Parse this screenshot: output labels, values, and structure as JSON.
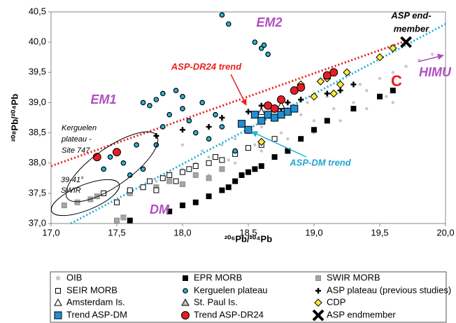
{
  "chart_data": {
    "type": "scatter",
    "x_label": "²⁰⁶Pb/²⁰⁴Pb",
    "y_label": "²⁰⁸Pb/²⁰⁴Pb",
    "xlim": [
      17.0,
      20.0
    ],
    "xticks": [
      {
        "value": 17.0,
        "label": "17,0"
      },
      {
        "value": 17.5,
        "label": "17,5"
      },
      {
        "value": 18.0,
        "label": "18,0"
      },
      {
        "value": 18.5,
        "label": "18,5"
      },
      {
        "value": 19.0,
        "label": "19,0"
      },
      {
        "value": 19.5,
        "label": "19,5"
      },
      {
        "value": 20.0,
        "label": "20,0"
      }
    ],
    "ylim": [
      37.0,
      40.5
    ],
    "yticks": [
      {
        "value": 37.0,
        "label": "37,0"
      },
      {
        "value": 37.5,
        "label": "37,5"
      },
      {
        "value": 38.0,
        "label": "38,0"
      },
      {
        "value": 38.5,
        "label": "38,5"
      },
      {
        "value": 39.0,
        "label": "39,0"
      },
      {
        "value": 39.5,
        "label": "39,5"
      },
      {
        "value": 40.0,
        "label": "40,0"
      },
      {
        "value": 40.5,
        "label": "40,5"
      }
    ],
    "grid": false,
    "series": [
      {
        "name": "OIB",
        "marker": "dot",
        "color": "#c8c8c8",
        "edge": "none",
        "x": [
          17.8,
          17.9,
          18.0,
          18.1,
          18.15,
          18.2,
          18.3,
          18.35,
          18.4,
          18.5,
          18.55,
          18.6,
          18.7,
          18.75,
          18.8,
          18.9,
          18.95,
          19.0,
          19.1,
          19.15,
          19.2,
          19.3,
          19.35,
          19.4,
          19.5,
          19.55,
          19.6,
          19.7,
          19.8,
          19.9,
          18.2,
          18.4,
          18.6,
          18.8,
          19.0,
          19.2,
          19.4,
          19.6,
          18.0,
          18.3
        ],
        "y": [
          37.7,
          37.8,
          37.9,
          38.0,
          38.2,
          38.1,
          38.3,
          38.05,
          38.4,
          38.5,
          38.3,
          38.6,
          38.7,
          38.5,
          38.9,
          38.8,
          39.0,
          38.7,
          39.1,
          38.9,
          39.2,
          39.0,
          39.3,
          39.2,
          39.4,
          39.1,
          39.5,
          39.6,
          39.7,
          39.8,
          37.8,
          38.0,
          38.2,
          38.4,
          38.5,
          38.7,
          38.9,
          39.0,
          38.3,
          38.7
        ]
      },
      {
        "name": "EPR MORB",
        "marker": "square",
        "color": "#000000",
        "edge": "#000000",
        "x": [
          17.6,
          17.9,
          18.0,
          18.1,
          18.2,
          18.3,
          18.35,
          18.4,
          18.45,
          18.5,
          18.55,
          18.6,
          18.7,
          18.8,
          18.9,
          19.0,
          19.1,
          19.3,
          19.5,
          19.6
        ],
        "y": [
          37.05,
          37.2,
          37.3,
          37.35,
          37.45,
          37.55,
          37.6,
          37.7,
          37.8,
          37.85,
          37.9,
          37.95,
          38.1,
          38.2,
          38.4,
          38.55,
          38.7,
          38.9,
          39.1,
          39.2
        ]
      },
      {
        "name": "SWIR MORB",
        "marker": "square",
        "color": "#a6a6a6",
        "edge": "#8c8c8c",
        "x": [
          17.1,
          17.2,
          17.3,
          17.35,
          17.5,
          17.55,
          17.6,
          17.8,
          17.9,
          18.0,
          18.1,
          18.2,
          18.3
        ],
        "y": [
          37.3,
          37.35,
          37.4,
          37.45,
          37.05,
          37.1,
          37.5,
          37.6,
          37.7,
          37.65,
          37.8,
          37.75,
          37.9
        ]
      },
      {
        "name": "SEIR MORB",
        "marker": "square",
        "color": "#ffffff",
        "edge": "#000000",
        "x": [
          17.4,
          17.5,
          17.6,
          17.7,
          17.75,
          17.8,
          17.85,
          17.9,
          17.95,
          18.0,
          18.05,
          18.1,
          18.2,
          18.25,
          18.3,
          18.4,
          18.5,
          18.6,
          18.7
        ],
        "y": [
          37.5,
          37.35,
          37.55,
          37.6,
          37.7,
          37.55,
          37.75,
          37.8,
          37.7,
          37.85,
          37.9,
          37.95,
          38.0,
          38.1,
          38.05,
          38.15,
          38.25,
          38.3,
          38.4
        ]
      },
      {
        "name": "Kerguelen plateau",
        "marker": "circle",
        "color": "#29b6d6",
        "edge": "#000000",
        "x": [
          17.4,
          17.45,
          17.5,
          17.55,
          17.6,
          17.65,
          17.7,
          17.75,
          17.8,
          17.85,
          17.9,
          17.95,
          18.0,
          18.05,
          18.1,
          18.15,
          18.2,
          18.3,
          18.35,
          18.4,
          18.6,
          18.62,
          18.65,
          18.55,
          17.7,
          17.85,
          17.8,
          18.0,
          18.3,
          18.25
        ],
        "y": [
          37.9,
          38.1,
          38.2,
          38.0,
          37.8,
          38.3,
          37.9,
          38.95,
          39.05,
          38.6,
          38.8,
          39.2,
          38.9,
          38.7,
          38.5,
          39.0,
          38.4,
          40.45,
          40.3,
          38.2,
          39.9,
          39.95,
          39.8,
          40.0,
          39.0,
          39.15,
          38.3,
          39.1,
          38.6,
          38.8
        ]
      },
      {
        "name": "ASP plateau (previous studies)",
        "marker": "plus",
        "color": "#000000",
        "edge": "#000000",
        "x": [
          17.8,
          18.0,
          18.2,
          18.3,
          18.5,
          18.6,
          18.65,
          18.75,
          18.8,
          18.9,
          19.0,
          19.1,
          19.2,
          19.3
        ],
        "y": [
          38.45,
          38.55,
          38.6,
          38.75,
          38.85,
          38.95,
          38.8,
          38.9,
          39.0,
          39.05,
          39.1,
          39.15,
          39.2,
          39.3
        ]
      },
      {
        "name": "Amsterdam Is.",
        "marker": "triangle",
        "color": "#ffffff",
        "edge": "#000000",
        "x": [
          18.6,
          18.75
        ],
        "y": [
          38.85,
          38.95
        ]
      },
      {
        "name": "St. Paul Is.",
        "marker": "triangle",
        "color": "#bfbfbf",
        "edge": "#000000",
        "x": [
          18.7,
          18.8
        ],
        "y": [
          38.75,
          38.85
        ]
      },
      {
        "name": "CDP",
        "marker": "diamond",
        "color": "#ffeb3b",
        "edge": "#000000",
        "x": [
          18.6,
          18.9,
          19.0,
          19.05,
          19.1,
          19.15,
          19.2,
          19.25,
          19.5,
          19.6
        ],
        "y": [
          38.35,
          39.3,
          39.1,
          39.35,
          39.4,
          39.15,
          39.3,
          39.5,
          39.75,
          39.9
        ]
      },
      {
        "name": "Trend ASP-DM",
        "marker": "bigsquare",
        "color": "#1f8fd6",
        "edge": "#000000",
        "x": [
          18.45,
          18.5,
          18.55,
          18.6,
          18.65,
          18.7,
          18.75,
          18.8,
          18.85
        ],
        "y": [
          38.65,
          38.55,
          38.8,
          38.7,
          38.8,
          38.75,
          38.8,
          38.85,
          38.9
        ]
      },
      {
        "name": "Trend ASP-DR24",
        "marker": "bigcircle",
        "color": "#e31e24",
        "edge": "#000000",
        "x": [
          17.35,
          17.5,
          18.65,
          18.7,
          18.75,
          18.85,
          18.9,
          19.1,
          19.15
        ],
        "y": [
          38.1,
          38.18,
          38.95,
          38.9,
          39.05,
          39.2,
          39.25,
          39.45,
          39.5
        ]
      },
      {
        "name": "ASP endmember",
        "marker": "x",
        "color": "#000000",
        "edge": "#000000",
        "x": [
          19.7
        ],
        "y": [
          40.0
        ]
      }
    ],
    "trend_lines": [
      {
        "color": "#e8201c",
        "x": [
          17.0,
          19.7
        ],
        "y": [
          37.95,
          40.02
        ]
      },
      {
        "color": "#1fb0d8",
        "x": [
          17.15,
          20.0
        ],
        "y": [
          37.0,
          40.3
        ]
      }
    ],
    "annotations": [
      "EM2",
      "EM1",
      "HIMU",
      "DM",
      "C",
      "ASP-DR24 trend",
      "ASP-DM trend",
      [
        "ASP end-",
        "member"
      ],
      [
        "Kerguelen",
        "plateau -",
        "Site 747"
      ],
      [
        "39-41°",
        "SWIR"
      ]
    ]
  }
}
